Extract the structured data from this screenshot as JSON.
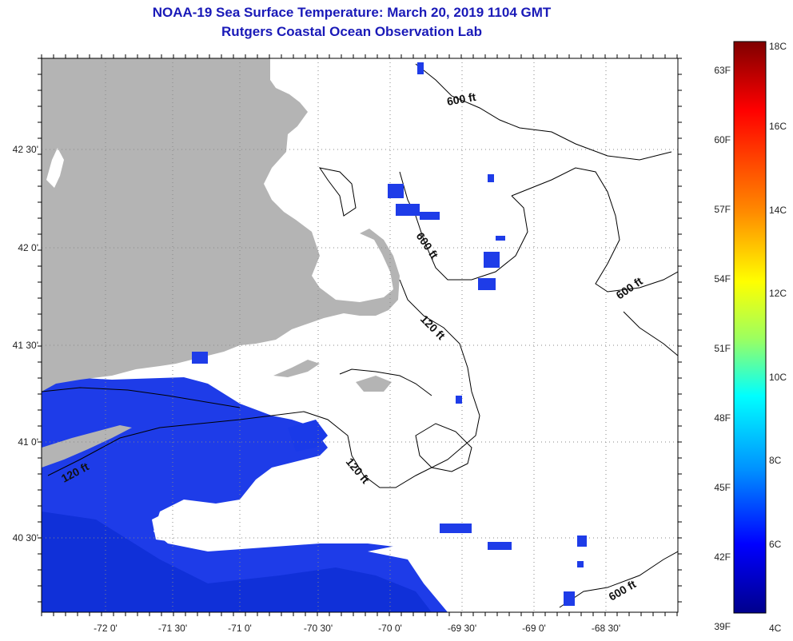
{
  "title": {
    "line1": "NOAA-19 Sea Surface Temperature:  March 20, 2019 1104 GMT",
    "line2": "Rutgers Coastal Ocean Observation Lab"
  },
  "map": {
    "longitude_labels": [
      "-72 0'",
      "-71 30'",
      "-71 0'",
      "-70 30'",
      "-70 0'",
      "-69 30'",
      "-69 0'",
      "-68 30'"
    ],
    "latitude_labels": [
      "42 30'",
      "42 0'",
      "41 30'",
      "41 0'",
      "40 30'"
    ],
    "contour_labels": [
      "600 ft",
      "600 ft",
      "600 ft",
      "600 ft",
      "120 ft",
      "120 ft",
      "120 ft"
    ],
    "colors": {
      "land": "#b4b4b4",
      "cloud": "#ffffff",
      "water_cold": "#1e3cf0",
      "water_deep": "#0a28c8",
      "contour": "#000000"
    }
  },
  "color_scale": {
    "fahrenheit_labels": [
      "63F",
      "60F",
      "57F",
      "54F",
      "51F",
      "48F",
      "45F",
      "42F",
      "39F"
    ],
    "celsius_labels": [
      "18C",
      "16C",
      "14C",
      "12C",
      "10C",
      "8C",
      "6C",
      "4C"
    ],
    "gradient": [
      "#7f0000",
      "#ff0000",
      "#ff8000",
      "#ffff00",
      "#80ff80",
      "#00ffff",
      "#0080ff",
      "#0000ff",
      "#00008f"
    ]
  }
}
